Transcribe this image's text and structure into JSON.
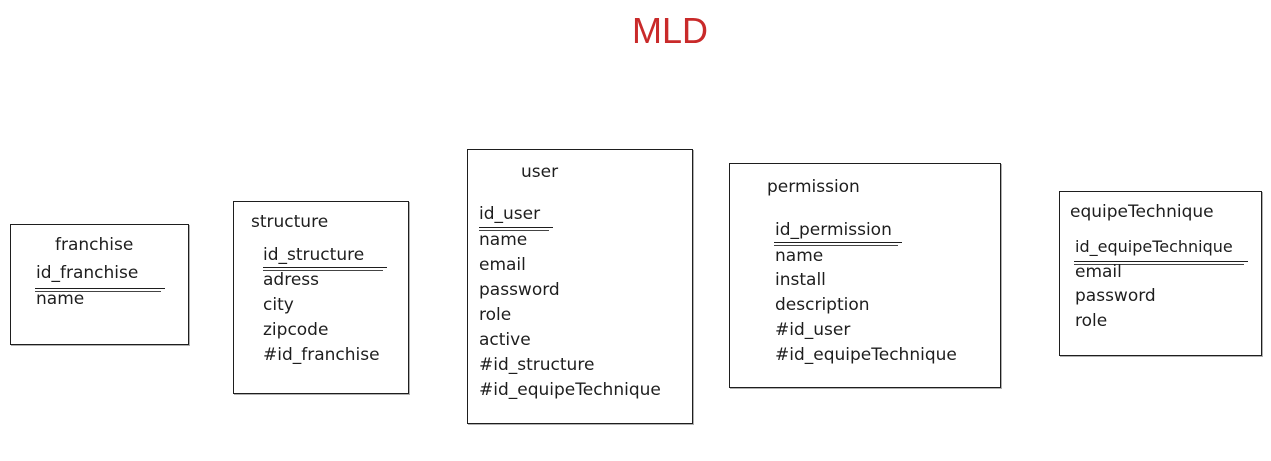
{
  "diagram": {
    "title": "MLD",
    "title_color": "#c92a2a",
    "entities": [
      {
        "name": "franchise",
        "primary_key": "id_franchise",
        "fields": [
          "name"
        ]
      },
      {
        "name": "structure",
        "primary_key": "id_structure",
        "fields": [
          "adress",
          "city",
          "zipcode",
          "#id_franchise"
        ]
      },
      {
        "name": "user",
        "primary_key": "id_user",
        "fields": [
          "name",
          "email",
          "password",
          "role",
          "active",
          "#id_structure",
          "#id_equipeTechnique"
        ]
      },
      {
        "name": "permission",
        "primary_key": "id_permission",
        "fields": [
          "name",
          "install",
          "description",
          "#id_user",
          "#id_equipeTechnique"
        ]
      },
      {
        "name": "equipeTechnique",
        "primary_key": "id_equipeTechnique",
        "fields": [
          "email",
          "password",
          "role"
        ]
      }
    ]
  }
}
